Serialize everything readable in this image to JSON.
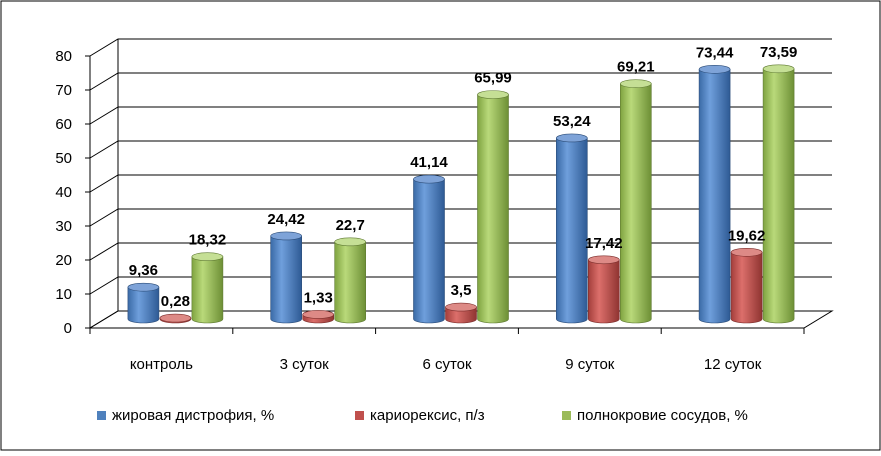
{
  "chart_data": {
    "type": "bar",
    "categories": [
      "контроль",
      "3 суток",
      "6 суток",
      "9 суток",
      "12 суток"
    ],
    "series": [
      {
        "name": "жировая дистрофия, %",
        "values": [
          9.36,
          24.42,
          41.14,
          53.24,
          73.44
        ],
        "labels": [
          "9,36",
          "24,42",
          "41,14",
          "53,24",
          "73,44"
        ],
        "color": "#4f81bd"
      },
      {
        "name": "кариорексис, п/з",
        "values": [
          0.28,
          1.33,
          3.5,
          17.42,
          19.62
        ],
        "labels": [
          "0,28",
          "1,33",
          "3,5",
          "17,42",
          "19,62"
        ],
        "color": "#c0504d"
      },
      {
        "name": "полнокровие сосудов, %",
        "values": [
          18.32,
          22.7,
          65.99,
          69.21,
          73.59
        ],
        "labels": [
          "18,32",
          "22,7",
          "65,99",
          "69,21",
          "73,59"
        ],
        "color": "#9bbb59"
      }
    ],
    "yticks": [
      "0",
      "10",
      "20",
      "30",
      "40",
      "50",
      "60",
      "70",
      "80"
    ],
    "ylim": [
      0,
      80
    ],
    "grid": true,
    "legend": "bottom"
  }
}
